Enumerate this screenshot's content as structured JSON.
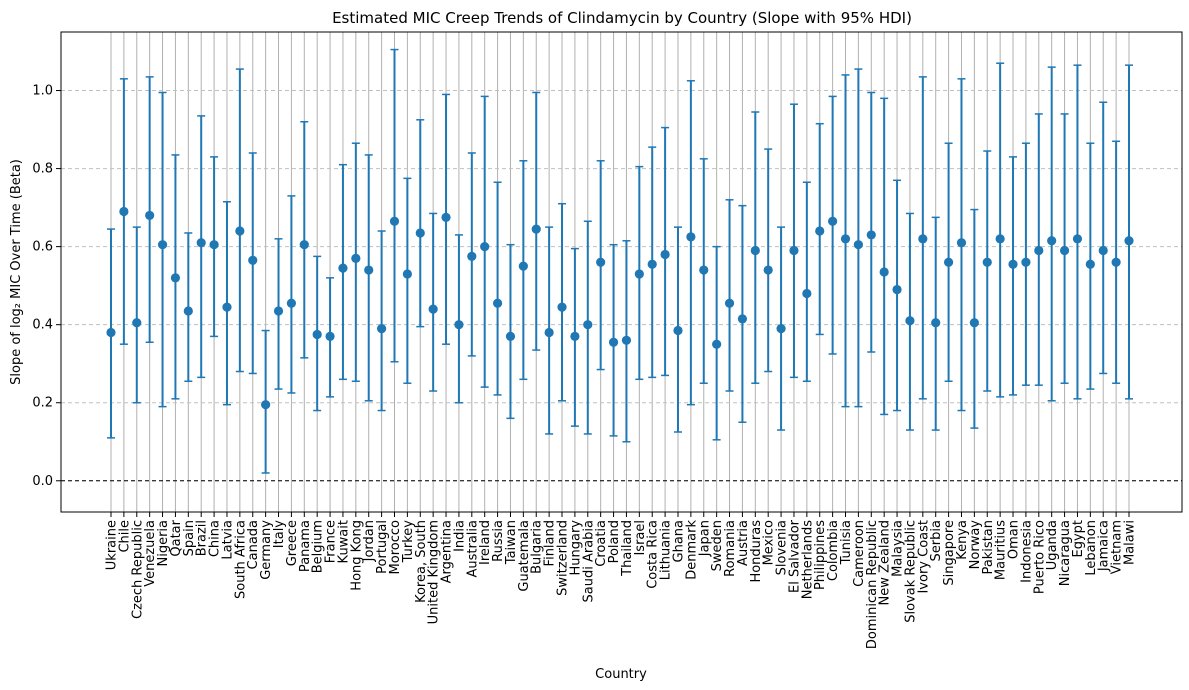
{
  "chart_data": {
    "type": "errorbar",
    "title": "Estimated MIC Creep Trends of Clindamycin by Country (Slope with 95% HDI)",
    "xlabel": "Country",
    "ylabel": "Slope of log₂ MIC Over Time (Beta)",
    "ylim": [
      -0.08,
      1.15
    ],
    "yticks": [
      "0.0",
      "0.2",
      "0.4",
      "0.6",
      "0.8",
      "1.0"
    ],
    "reference_line": 0,
    "grid": "x solid, y dashed",
    "marker_color": "#1f77b4",
    "categories": [
      "Ukraine",
      "Chile",
      "Czech Republic",
      "Venezuela",
      "Nigeria",
      "Qatar",
      "Spain",
      "Brazil",
      "China",
      "Latvia",
      "South Africa",
      "Canada",
      "Germany",
      "Italy",
      "Greece",
      "Panama",
      "Belgium",
      "France",
      "Kuwait",
      "Hong Kong",
      "Jordan",
      "Portugal",
      "Morocco",
      "Turkey",
      "Korea, South",
      "United Kingdom",
      "Argentina",
      "India",
      "Australia",
      "Ireland",
      "Russia",
      "Taiwan",
      "Guatemala",
      "Bulgaria",
      "Finland",
      "Switzerland",
      "Hungary",
      "Saudi Arabia",
      "Croatia",
      "Poland",
      "Thailand",
      "Israel",
      "Costa Rica",
      "Lithuania",
      "Ghana",
      "Denmark",
      "Japan",
      "Sweden",
      "Romania",
      "Austria",
      "Honduras",
      "Mexico",
      "Slovenia",
      "El Salvador",
      "Netherlands",
      "Philippines",
      "Colombia",
      "Tunisia",
      "Cameroon",
      "Dominican Republic",
      "New Zealand",
      "Malaysia",
      "Slovak Republic",
      "Ivory Coast",
      "Serbia",
      "Singapore",
      "Kenya",
      "Norway",
      "Pakistan",
      "Mauritius",
      "Oman",
      "Indonesia",
      "Puerto Rico",
      "Uganda",
      "Nicaragua",
      "Egypt",
      "Lebanon",
      "Jamaica",
      "Vietnam",
      "Malawi"
    ],
    "values": [
      0.38,
      0.69,
      0.405,
      0.68,
      0.605,
      0.52,
      0.435,
      0.61,
      0.605,
      0.445,
      0.64,
      0.565,
      0.195,
      0.435,
      0.455,
      0.605,
      0.375,
      0.37,
      0.545,
      0.57,
      0.54,
      0.39,
      0.665,
      0.53,
      0.635,
      0.44,
      0.675,
      0.4,
      0.575,
      0.6,
      0.455,
      0.37,
      0.55,
      0.645,
      0.38,
      0.445,
      0.37,
      0.4,
      0.56,
      0.355,
      0.36,
      0.53,
      0.555,
      0.58,
      0.385,
      0.625,
      0.54,
      0.35,
      0.455,
      0.415,
      0.59,
      0.54,
      0.39,
      0.59,
      0.48,
      0.64,
      0.665,
      0.62,
      0.605,
      0.63,
      0.535,
      0.49,
      0.41,
      0.62,
      0.405,
      0.56,
      0.61,
      0.405,
      0.56,
      0.62,
      0.555,
      0.56,
      0.59,
      0.615,
      0.59,
      0.62,
      0.555,
      0.59,
      0.56,
      0.615
    ],
    "lower": [
      0.11,
      0.35,
      0.2,
      0.355,
      0.19,
      0.21,
      0.255,
      0.265,
      0.37,
      0.195,
      0.28,
      0.275,
      0.02,
      0.235,
      0.225,
      0.315,
      0.18,
      0.215,
      0.26,
      0.255,
      0.205,
      0.18,
      0.305,
      0.25,
      0.395,
      0.23,
      0.35,
      0.2,
      0.32,
      0.24,
      0.22,
      0.16,
      0.26,
      0.335,
      0.12,
      0.205,
      0.14,
      0.12,
      0.285,
      0.115,
      0.1,
      0.26,
      0.265,
      0.27,
      0.125,
      0.195,
      0.25,
      0.105,
      0.23,
      0.15,
      0.25,
      0.28,
      0.13,
      0.265,
      0.255,
      0.375,
      0.325,
      0.19,
      0.19,
      0.33,
      0.17,
      0.18,
      0.13,
      0.21,
      0.13,
      0.255,
      0.18,
      0.135,
      0.23,
      0.215,
      0.22,
      0.245,
      0.245,
      0.205,
      0.25,
      0.21,
      0.235,
      0.275,
      0.25,
      0.21
    ],
    "upper": [
      0.645,
      1.03,
      0.65,
      1.035,
      0.995,
      0.835,
      0.635,
      0.935,
      0.83,
      0.715,
      1.055,
      0.84,
      0.385,
      0.62,
      0.73,
      0.92,
      0.575,
      0.52,
      0.81,
      0.865,
      0.835,
      0.64,
      1.105,
      0.775,
      0.925,
      0.685,
      0.99,
      0.63,
      0.84,
      0.985,
      0.765,
      0.605,
      0.82,
      0.995,
      0.65,
      0.71,
      0.595,
      0.665,
      0.82,
      0.605,
      0.615,
      0.805,
      0.855,
      0.905,
      0.65,
      1.025,
      0.825,
      0.6,
      0.72,
      0.705,
      0.945,
      0.85,
      0.65,
      0.965,
      0.765,
      0.915,
      0.985,
      1.04,
      1.055,
      0.995,
      0.98,
      0.77,
      0.685,
      1.035,
      0.675,
      0.865,
      1.03,
      0.695,
      0.845,
      1.07,
      0.83,
      0.865,
      0.94,
      1.06,
      0.94,
      1.065,
      0.865,
      0.97,
      0.87,
      1.065
    ]
  }
}
